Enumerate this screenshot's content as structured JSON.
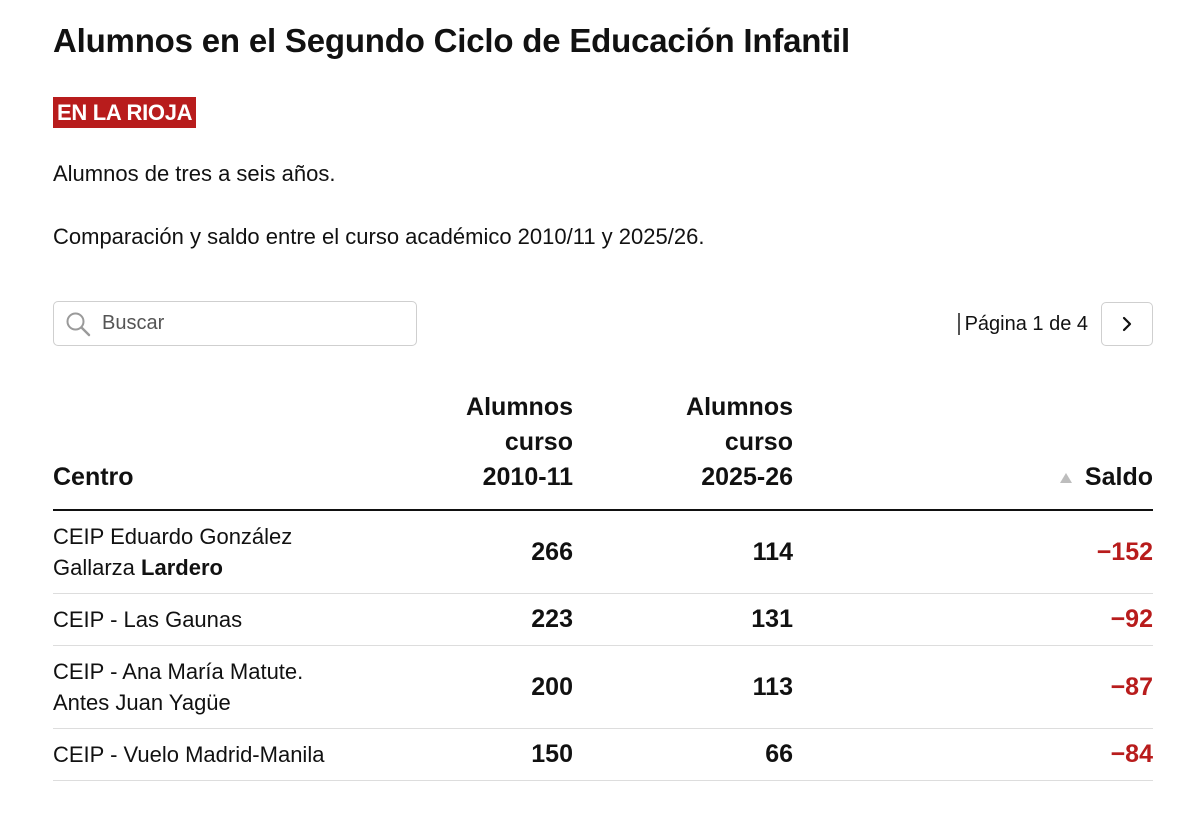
{
  "header": {
    "title": "Alumnos en el Segundo Ciclo de Educación Infantil",
    "badge": "EN LA RIOJA",
    "description_1": "Alumnos de tres a seis años.",
    "description_2": "Comparación y saldo entre el curso académico 2010/11 y 2025/26."
  },
  "search": {
    "placeholder": "Buscar",
    "value": "",
    "icon": "search-icon"
  },
  "pagination": {
    "label": "Página 1 de 4",
    "current_page": 1,
    "total_pages": 4,
    "next_icon": "chevron-right-icon"
  },
  "table": {
    "columns": {
      "centro": "Centro",
      "curso_2010_line1": "Alumnos",
      "curso_2010_line2": "curso",
      "curso_2010_line3": "2010-11",
      "curso_2025_line1": "Alumnos",
      "curso_2025_line2": "curso",
      "curso_2025_line3": "2025-26",
      "saldo": "Saldo",
      "saldo_sort_icon": "sort-ascending-icon"
    },
    "rows": [
      {
        "centro": "CEIP Eduardo González Gallarza",
        "localidad": "Lardero",
        "curso_2010": "266",
        "curso_2025": "114",
        "saldo": "−152"
      },
      {
        "centro": "CEIP - Las Gaunas",
        "localidad": "",
        "curso_2010": "223",
        "curso_2025": "131",
        "saldo": "−92"
      },
      {
        "centro": "CEIP - Ana María Matute. Antes Juan Yagüe",
        "localidad": "",
        "curso_2010": "200",
        "curso_2025": "113",
        "saldo": "−87"
      },
      {
        "centro": "CEIP - Vuelo Madrid-Manila",
        "localidad": "",
        "curso_2010": "150",
        "curso_2025": "66",
        "saldo": "−84"
      }
    ]
  },
  "colors": {
    "accent_red": "#b81c1c",
    "text": "#111111",
    "border": "#cfcfcf"
  }
}
